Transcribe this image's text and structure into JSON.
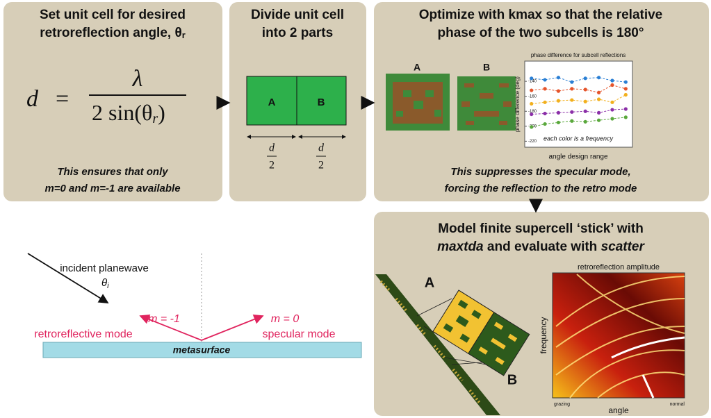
{
  "steps": [
    {
      "title": [
        "Set unit cell for desired",
        "retroreflection angle, θ"
      ],
      "title_subscript": "r",
      "formula": {
        "lhs": "d",
        "eq": "=",
        "numerator": "λ",
        "denominator": "2 sin(θ",
        "subscript": "r",
        "close": ")"
      },
      "note": [
        "This ensures that only",
        "m=0 and m=-1 are available"
      ]
    },
    {
      "title": [
        "Divide unit cell",
        "into 2 parts"
      ],
      "cells": [
        "A",
        "B"
      ],
      "dimension": {
        "numerator": "d",
        "denominator": "2"
      }
    },
    {
      "title": [
        "Optimize with kmax so that the relative",
        "phase of the two subcells is 180°"
      ],
      "cells": [
        "A",
        "B"
      ],
      "note": [
        "This suppresses the specular mode,",
        "forcing the reflection to the retro mode"
      ]
    },
    {
      "title": [
        "Model finite supercell ‘stick’ with"
      ],
      "title_parts": [
        "maxtda",
        " and evaluate with ",
        "scatter"
      ],
      "cells": [
        "A",
        "B"
      ],
      "plot": {
        "title": "retroreflection amplitude",
        "ylabel": "frequency",
        "xlabel": "angle",
        "xstart": "grazing",
        "xend": "normal"
      }
    }
  ],
  "sketch": {
    "incident": "incident planewave",
    "incident_angle": "θ",
    "incident_angle_subscript": "i",
    "retro": {
      "order": "m = -1",
      "mode": "retroreflective mode"
    },
    "specular": {
      "order": "m = 0",
      "mode": "specular mode"
    },
    "surface": "metasurface"
  },
  "chart_data": {
    "type": "line",
    "title": "phase difference for subcell reflections",
    "ylabel": "phase difference (deg)",
    "xlabel": "angle design range",
    "annotation": "each color is a frequency",
    "x": [
      1,
      2,
      3,
      4,
      5,
      6,
      7,
      8
    ],
    "xlim": [
      0.5,
      8.5
    ],
    "ylim": [
      -228,
      -113
    ],
    "yticks": [
      -140,
      -160,
      -180,
      -200,
      -220
    ],
    "series": [
      {
        "color": "#2a7fd4",
        "values": [
          -136,
          -138,
          -135,
          -141,
          -136,
          -135,
          -139,
          -141
        ]
      },
      {
        "color": "#e5542b",
        "values": [
          -152,
          -150,
          -153,
          -150,
          -151,
          -155,
          -145,
          -150
        ]
      },
      {
        "color": "#f2b01e",
        "values": [
          -170,
          -168,
          -166,
          -165,
          -167,
          -164,
          -168,
          -158
        ]
      },
      {
        "color": "#8b2fa8",
        "values": [
          -184,
          -183,
          -182,
          -181,
          -180,
          -182,
          -178,
          -177
        ]
      },
      {
        "color": "#5aa83c",
        "values": [
          -201,
          -197,
          -195,
          -193,
          -194,
          -192,
          -190,
          -188
        ]
      }
    ]
  }
}
